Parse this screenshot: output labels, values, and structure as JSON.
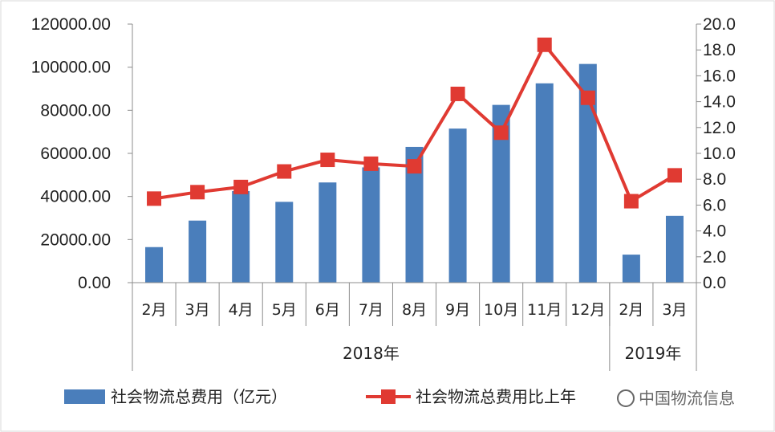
{
  "chart_data": {
    "type": "bar+line",
    "categories": [
      "2月",
      "3月",
      "4月",
      "5月",
      "6月",
      "7月",
      "8月",
      "9月",
      "10月",
      "11月",
      "12月",
      "2月",
      "3月"
    ],
    "groups": [
      {
        "label": "2018年",
        "count": 11
      },
      {
        "label": "2019年",
        "count": 2
      }
    ],
    "series": [
      {
        "name": "社会物流总费用（亿元）",
        "type": "bar",
        "axis": "left",
        "color": "#4a7ebb",
        "values": [
          16500,
          28800,
          42500,
          37500,
          46500,
          53500,
          63000,
          71500,
          82500,
          92500,
          101500,
          13000,
          31000
        ]
      },
      {
        "name": "社会物流总费用比上年",
        "type": "line",
        "axis": "right",
        "color": "#e03a32",
        "values": [
          6.5,
          7.0,
          7.4,
          8.6,
          9.5,
          9.2,
          9.0,
          14.6,
          11.6,
          18.4,
          14.3,
          6.3,
          8.3
        ]
      }
    ],
    "y_left": {
      "min": 0,
      "max": 120000,
      "step": 20000,
      "ticks": [
        "0.00",
        "20000.00",
        "40000.00",
        "60000.00",
        "80000.00",
        "100000.00",
        "120000.00"
      ]
    },
    "y_right": {
      "min": 0,
      "max": 20,
      "step": 2,
      "ticks": [
        "0.0",
        "2.0",
        "4.0",
        "6.0",
        "8.0",
        "10.0",
        "12.0",
        "14.0",
        "16.0",
        "18.0",
        "20.0"
      ]
    },
    "grid": false,
    "legend": "bottom",
    "title": "",
    "xlabel": "",
    "ylabel": ""
  },
  "watermark": "中国物流信息"
}
